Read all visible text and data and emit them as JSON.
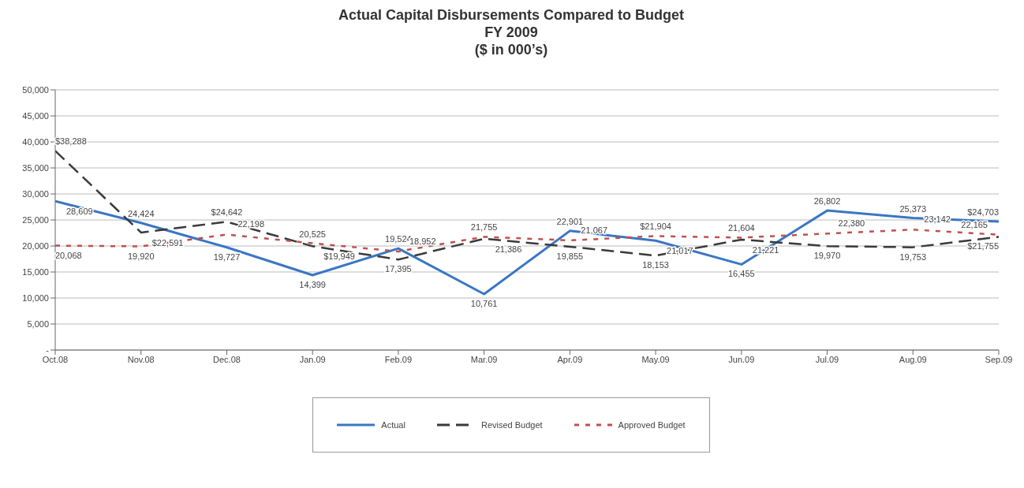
{
  "chart_data": {
    "type": "line",
    "title": "Actual Capital Disbursements Compared to Budget",
    "subtitle": "FY 2009\n($ in 000’s)",
    "categories": [
      "Oct.08",
      "Nov.08",
      "Dec.08",
      "Jan.09",
      "Feb.09",
      "Mar.09",
      "Apr.09",
      "May.09",
      "Jun.09",
      "Jul.09",
      "Aug.09",
      "Sep.09"
    ],
    "series": [
      {
        "name": "Actual",
        "color": "#3a76c4",
        "line_style": "solid",
        "values": [
          28609,
          24424,
          19727,
          14399,
          19524,
          10761,
          22901,
          21017,
          16455,
          26802,
          25373,
          24703
        ],
        "value_labels": [
          "28,609",
          "24,424",
          "19,727",
          "14,399",
          "19,524",
          "10,761",
          "22,901",
          "21,017",
          "16,455",
          "26,802",
          "25,373",
          "$24,703"
        ]
      },
      {
        "name": "Revised Budget",
        "color": "#3a3a3a",
        "line_style": "dashed",
        "values": [
          38288,
          22591,
          24642,
          19949,
          17395,
          21386,
          19855,
          18153,
          21221,
          19970,
          19753,
          21755
        ],
        "value_labels": [
          "$38,288",
          "$22,591",
          "$24,642",
          "$19,949",
          "17,395",
          "21,386",
          "19,855",
          "18,153",
          "21,221",
          "19,970",
          "19,753",
          "$21,755"
        ]
      },
      {
        "name": "Approved Budget",
        "color": "#c0504d",
        "line_style": "dotted",
        "values": [
          20068,
          19920,
          22198,
          20525,
          18952,
          21755,
          21067,
          21904,
          21604,
          22380,
          23142,
          22165
        ],
        "value_labels": [
          "20,068",
          "19,920",
          "22,198",
          "20,525",
          "18,952",
          "21,755",
          "21,067",
          "$21,904",
          "21,604",
          "22,380",
          "23,142",
          "22,165"
        ]
      }
    ],
    "ylim": [
      0,
      50000
    ],
    "yticks": [
      {
        "value": 0,
        "label": "-"
      },
      {
        "value": 5000,
        "label": "5,000"
      },
      {
        "value": 10000,
        "label": "10,000"
      },
      {
        "value": 15000,
        "label": "15,000"
      },
      {
        "value": 20000,
        "label": "20,000"
      },
      {
        "value": 25000,
        "label": "25,000"
      },
      {
        "value": 30000,
        "label": "30,000"
      },
      {
        "value": 35000,
        "label": "35,000"
      },
      {
        "value": 40000,
        "label": "40,000"
      },
      {
        "value": 45000,
        "label": "45,000"
      },
      {
        "value": 50000,
        "label": "50,000"
      }
    ],
    "grid": "y",
    "legend": "bottom",
    "marker": "none"
  }
}
